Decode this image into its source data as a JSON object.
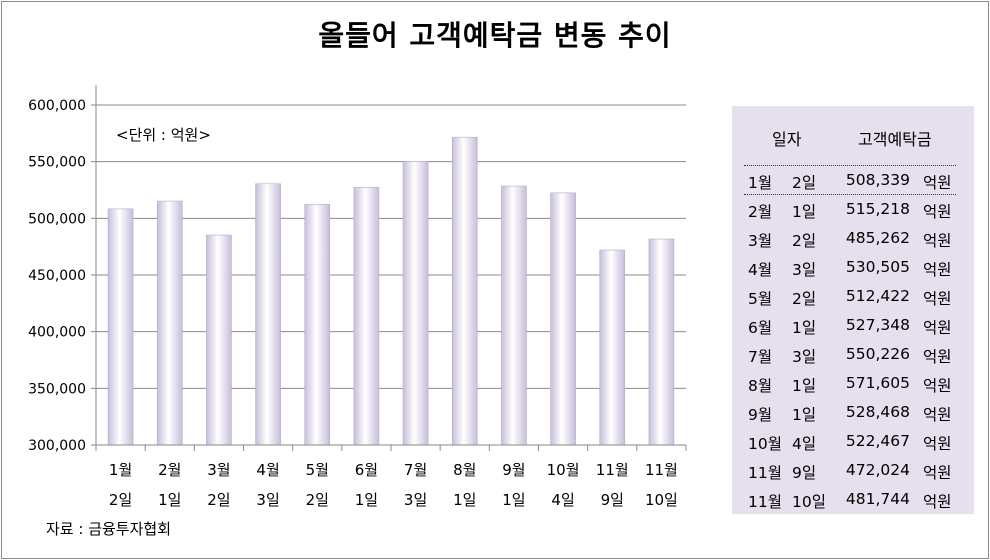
{
  "title": "올들어 고객예탁금 변동 추이",
  "source": "자료 : 금융투자협회",
  "colors": {
    "bar_light": "#ffffff",
    "bar_dark": "#c8bedb",
    "grid": "#8a8a8a",
    "table_bg": "#e6e0ee"
  },
  "chart_data": {
    "type": "bar",
    "unit_label": "<단위 : 억원>",
    "ylim": [
      300000,
      600000
    ],
    "yticks": [
      "300,000",
      "350,000",
      "400,000",
      "450,000",
      "500,000",
      "550,000",
      "600,000"
    ],
    "ytick_values": [
      300000,
      350000,
      400000,
      450000,
      500000,
      550000,
      600000
    ],
    "grid": true,
    "categories": [
      [
        "1월",
        "2일"
      ],
      [
        "2월",
        "1일"
      ],
      [
        "3월",
        "2일"
      ],
      [
        "4월",
        "3일"
      ],
      [
        "5월",
        "2일"
      ],
      [
        "6월",
        "1일"
      ],
      [
        "7월",
        "3일"
      ],
      [
        "8월",
        "1일"
      ],
      [
        "9월",
        "1일"
      ],
      [
        "10월",
        "4일"
      ],
      [
        "11월",
        "9일"
      ],
      [
        "11월",
        "10일"
      ]
    ],
    "values": [
      508339,
      515218,
      485262,
      530505,
      512422,
      527348,
      550226,
      571605,
      528468,
      522467,
      472024,
      481744
    ]
  },
  "table": {
    "header_date": "일자",
    "header_amount": "고객예탁금",
    "unit": "억원",
    "rows": [
      {
        "month": "1월",
        "day": "2일",
        "value": "508,339"
      },
      {
        "month": "2월",
        "day": "1일",
        "value": "515,218"
      },
      {
        "month": "3월",
        "day": "2일",
        "value": "485,262"
      },
      {
        "month": "4월",
        "day": "3일",
        "value": "530,505"
      },
      {
        "month": "5월",
        "day": "2일",
        "value": "512,422"
      },
      {
        "month": "6월",
        "day": "1일",
        "value": "527,348"
      },
      {
        "month": "7월",
        "day": "3일",
        "value": "550,226"
      },
      {
        "month": "8월",
        "day": "1일",
        "value": "571,605"
      },
      {
        "month": "9월",
        "day": "1일",
        "value": "528,468"
      },
      {
        "month": "10월",
        "day": "4일",
        "value": "522,467"
      },
      {
        "month": "11월",
        "day": "9일",
        "value": "472,024"
      },
      {
        "month": "11월",
        "day": "10일",
        "value": "481,744"
      }
    ]
  }
}
